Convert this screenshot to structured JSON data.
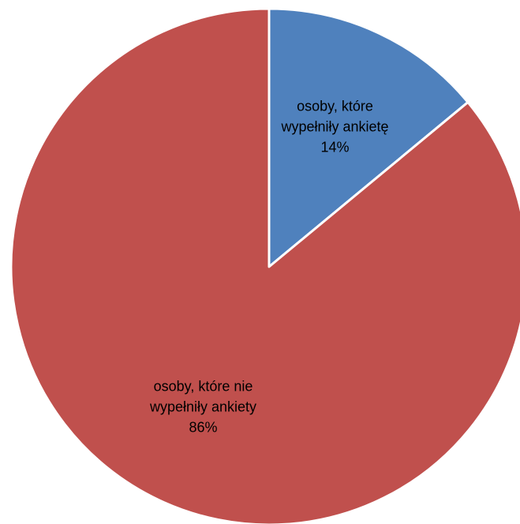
{
  "chart_data": {
    "type": "pie",
    "title": "",
    "start_angle_deg": 0,
    "direction": "clockwise",
    "slices": [
      {
        "label_lines": [
          "osoby, które",
          "wypełniły ankietę"
        ],
        "percent_label": "14%",
        "value": 14,
        "color": "#4f81bd"
      },
      {
        "label_lines": [
          "osoby, które nie",
          "wypełniły ankiety"
        ],
        "percent_label": "86%",
        "value": 86,
        "color": "#c0504d"
      }
    ],
    "slice_border_color": "#ffffff",
    "legend": "none",
    "data_labels": "inside"
  }
}
